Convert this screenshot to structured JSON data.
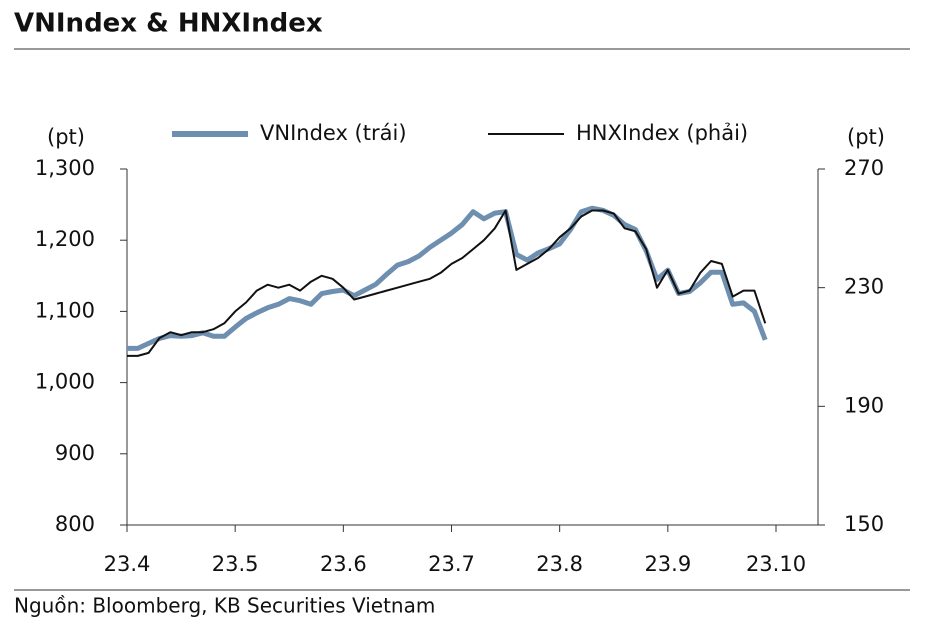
{
  "chart_data": {
    "type": "line",
    "title": "VNIndex & HNXIndex",
    "source": "Nguồn: Bloomberg, KB Securities Vietnam",
    "y_label": "(pt)",
    "y2_label": "(pt)",
    "categories": [
      "23.4",
      null,
      null,
      null,
      null,
      null,
      null,
      null,
      null,
      null,
      "23.5",
      null,
      null,
      null,
      null,
      null,
      null,
      null,
      null,
      null,
      "23.6",
      null,
      null,
      null,
      null,
      null,
      null,
      null,
      null,
      null,
      "23.7",
      null,
      null,
      null,
      null,
      null,
      null,
      null,
      null,
      null,
      "23.8",
      null,
      null,
      null,
      null,
      null,
      null,
      null,
      null,
      null,
      "23.9",
      null,
      null,
      null,
      null,
      null,
      null,
      null,
      null,
      null,
      "23.10"
    ],
    "series": [
      {
        "name": "VNIndex (trái)",
        "color": "#6f8fb0",
        "axis": "y",
        "values": [
          1048,
          1048,
          1055,
          1062,
          1066,
          1065,
          1066,
          1070,
          1065,
          1065,
          1078,
          1090,
          1098,
          1105,
          1110,
          1118,
          1115,
          1110,
          1125,
          1128,
          1130,
          1122,
          1130,
          1138,
          1152,
          1165,
          1170,
          1178,
          1190,
          1200,
          1210,
          1222,
          1240,
          1230,
          1238,
          1240,
          1180,
          1172,
          1182,
          1188,
          1195,
          1215,
          1240,
          1245,
          1242,
          1235,
          1222,
          1215,
          1185,
          1145,
          1158,
          1125,
          1128,
          1140,
          1155,
          1155,
          1110,
          1112,
          1100,
          1060,
          null
        ]
      },
      {
        "name": "HNXIndex (phải)",
        "color": "#111111",
        "axis": "y2",
        "values": [
          207,
          207,
          208,
          213,
          215,
          214,
          215,
          215,
          216,
          218,
          222,
          225,
          229,
          231,
          230,
          231,
          229,
          232,
          234,
          233,
          230,
          226,
          227,
          228,
          229,
          230,
          231,
          232,
          233,
          235,
          238,
          240,
          243,
          246,
          250,
          256,
          236,
          238,
          240,
          243,
          247,
          250,
          254,
          256,
          256,
          255,
          250,
          249,
          243,
          230,
          236,
          228,
          229,
          235,
          239,
          238,
          227,
          229,
          229,
          218,
          null
        ]
      }
    ],
    "ylim": [
      800,
      1300
    ],
    "yticks": [
      800,
      900,
      {
        "value": 1000,
        "label": "1,000"
      },
      {
        "value": 1100,
        "label": "1,100"
      },
      {
        "value": 1200,
        "label": "1,200"
      },
      {
        "value": 1300,
        "label": "1,300"
      }
    ],
    "y2lim": [
      150,
      270
    ],
    "y2ticks": [
      150,
      190,
      230,
      270
    ],
    "legend": "top"
  }
}
